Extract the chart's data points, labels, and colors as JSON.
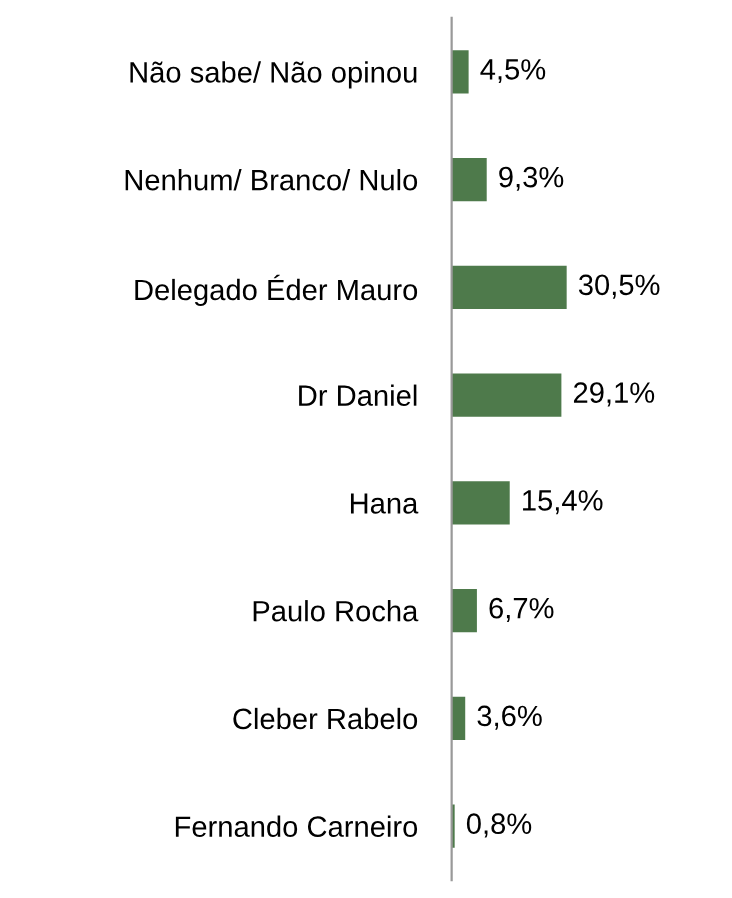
{
  "chart_data": {
    "type": "bar",
    "orientation": "horizontal",
    "categories": [
      "Não sabe/ Não opinou",
      "Nenhum/ Branco/ Nulo",
      "Delegado Éder Mauro",
      "Dr Daniel",
      "Hana",
      "Paulo Rocha",
      "Cleber Rabelo",
      "Fernando Carneiro"
    ],
    "values": [
      4.5,
      9.3,
      30.5,
      29.1,
      15.4,
      6.7,
      3.6,
      0.8
    ],
    "value_labels": [
      "4,5%",
      "9,3%",
      "30,5%",
      "29,1%",
      "15,4%",
      "6,7%",
      "3,6%",
      "0,8%"
    ],
    "color": "#4e7a4b",
    "grid": false,
    "legend": false
  }
}
